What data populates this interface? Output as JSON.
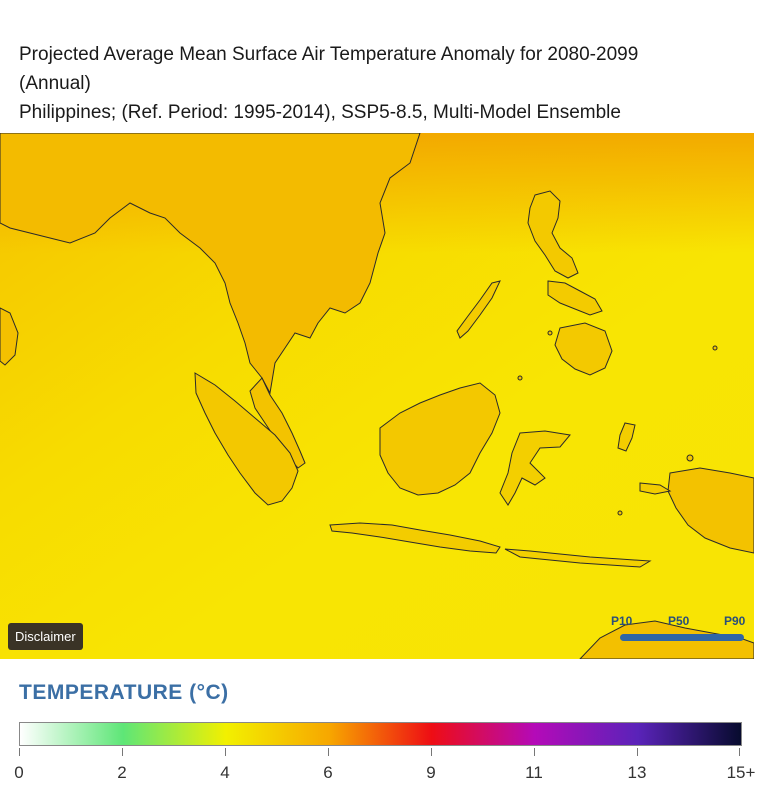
{
  "title": {
    "line1": "Projected Average Mean Surface Air Temperature Anomaly for 2080-2099",
    "line2": "(Annual)",
    "line3": "Philippines; (Ref. Period: 1995-2014), SSP5-8.5, Multi-Model Ensemble"
  },
  "map": {
    "disclaimer_label": "Disclaimer",
    "percentiles": [
      "P10",
      "P50",
      "P90"
    ],
    "colors": {
      "sea": "#f7e602",
      "land_warm": "#f4b100",
      "land_mid": "#f2cc00",
      "coast": "#1c1c1c"
    }
  },
  "legend": {
    "title": "TEMPERATURE (°C)",
    "tick_labels": [
      "0",
      "2",
      "4",
      "6",
      "9",
      "11",
      "13",
      "15+"
    ],
    "gradient_colors": [
      "#ffffff",
      "#5ee677",
      "#f2f000",
      "#f7a700",
      "#ee0d14",
      "#b40ab8",
      "#5a23b9",
      "#070b2e"
    ]
  }
}
